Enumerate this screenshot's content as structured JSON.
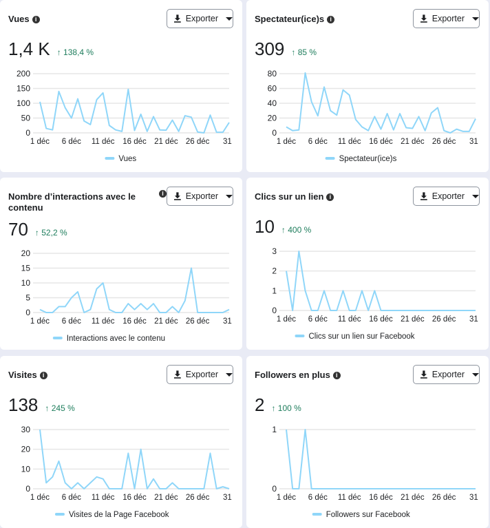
{
  "common": {
    "export_label": "Exporter",
    "info_icon": "info-icon",
    "download_icon": "download-icon",
    "line_color": "#8fd6f9",
    "delta_color": "#1e7d5c"
  },
  "cards": [
    {
      "title": "Vues",
      "value": "1,4 K",
      "delta": "↑ 138,4 %"
    },
    {
      "title": "Spectateur(ice)s",
      "value": "309",
      "delta": "↑ 85 %"
    },
    {
      "title": "Nombre d’interactions avec le contenu",
      "value": "70",
      "delta": "↑ 52,2 %"
    },
    {
      "title": "Clics sur un lien",
      "value": "10",
      "delta": "↑ 400 %"
    },
    {
      "title": "Visites",
      "value": "138",
      "delta": "↑ 245 %"
    },
    {
      "title": "Followers en plus",
      "value": "2",
      "delta": "↑ 100 %"
    }
  ],
  "chart_data": [
    {
      "type": "line",
      "legend": "Vues",
      "x_ticks": [
        "1 déc",
        "6 déc",
        "11 déc",
        "16 déc",
        "21 déc",
        "26 déc",
        "31 déc"
      ],
      "y_ticks": [
        "0",
        "50",
        "100",
        "150",
        "200"
      ],
      "ylim": [
        0,
        200
      ],
      "values": [
        105,
        15,
        10,
        140,
        85,
        50,
        115,
        40,
        28,
        112,
        135,
        25,
        10,
        5,
        147,
        8,
        63,
        5,
        55,
        10,
        9,
        43,
        5,
        58,
        53,
        3,
        0,
        60,
        2,
        2,
        35
      ]
    },
    {
      "type": "line",
      "legend": "Spectateur(ice)s",
      "x_ticks": [
        "1 déc",
        "6 déc",
        "11 déc",
        "16 déc",
        "21 déc",
        "26 déc",
        "31 déc"
      ],
      "y_ticks": [
        "0",
        "20",
        "40",
        "60",
        "80"
      ],
      "ylim": [
        0,
        80
      ],
      "values": [
        8,
        3,
        4,
        81,
        42,
        23,
        62,
        30,
        24,
        58,
        51,
        18,
        8,
        3,
        22,
        5,
        26,
        4,
        26,
        7,
        6,
        22,
        3,
        27,
        34,
        3,
        0,
        5,
        2,
        2,
        19
      ]
    },
    {
      "type": "line",
      "legend": "Interactions avec le contenu",
      "x_ticks": [
        "1 déc",
        "6 déc",
        "11 déc",
        "16 déc",
        "21 déc",
        "26 déc",
        "31 déc"
      ],
      "y_ticks": [
        "0",
        "5",
        "10",
        "15",
        "20"
      ],
      "ylim": [
        0,
        20
      ],
      "values": [
        1,
        0,
        0,
        2,
        2,
        5,
        7,
        0,
        1,
        8,
        10,
        1,
        0,
        0,
        3,
        1,
        3,
        1,
        3,
        0,
        0,
        2,
        0,
        4,
        15,
        0,
        0,
        0,
        0,
        0,
        1
      ]
    },
    {
      "type": "line",
      "legend": "Clics sur un lien sur Facebook",
      "x_ticks": [
        "1 déc",
        "6 déc",
        "11 déc",
        "16 déc",
        "21 déc",
        "26 déc",
        "31 déc"
      ],
      "y_ticks": [
        "0",
        "1",
        "2",
        "3"
      ],
      "ylim": [
        0,
        3
      ],
      "values": [
        2,
        0,
        3,
        1,
        0,
        0,
        1,
        0,
        0,
        1,
        0,
        0,
        1,
        0,
        1,
        0,
        0,
        0,
        0,
        0,
        0,
        0,
        0,
        0,
        0,
        0,
        0,
        0,
        0,
        0,
        0
      ]
    },
    {
      "type": "line",
      "legend": "Visites de la Page Facebook",
      "x_ticks": [
        "1 déc",
        "6 déc",
        "11 déc",
        "16 déc",
        "21 déc",
        "26 déc",
        "31 déc"
      ],
      "y_ticks": [
        "0",
        "10",
        "20",
        "30"
      ],
      "ylim": [
        0,
        30
      ],
      "values": [
        30,
        3,
        6,
        14,
        3,
        0,
        3,
        0,
        3,
        6,
        5,
        0,
        0,
        0,
        18,
        0,
        20,
        0,
        5,
        0,
        0,
        3,
        0,
        0,
        0,
        0,
        0,
        18,
        0,
        1,
        0
      ]
    },
    {
      "type": "line",
      "legend": "Followers sur Facebook",
      "x_ticks": [
        "1 déc",
        "6 déc",
        "11 déc",
        "16 déc",
        "21 déc",
        "26 déc",
        "31 déc"
      ],
      "y_ticks": [
        "0",
        "1"
      ],
      "ylim": [
        0,
        1
      ],
      "values": [
        1,
        0,
        0,
        1,
        0,
        0,
        0,
        0,
        0,
        0,
        0,
        0,
        0,
        0,
        0,
        0,
        0,
        0,
        0,
        0,
        0,
        0,
        0,
        0,
        0,
        0,
        0,
        0,
        0,
        0,
        0
      ]
    }
  ]
}
